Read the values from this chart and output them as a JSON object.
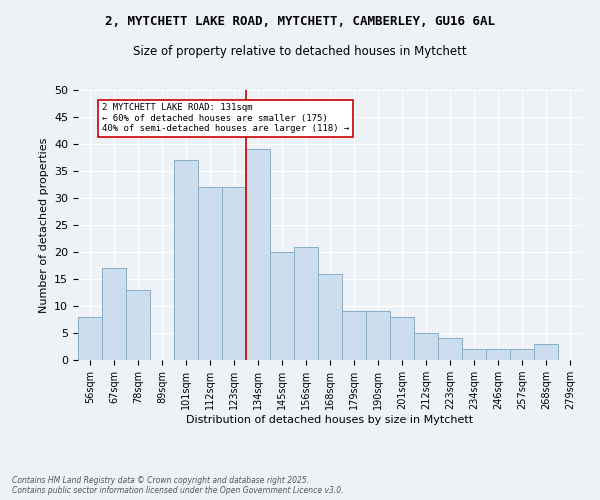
{
  "title_line1": "2, MYTCHETT LAKE ROAD, MYTCHETT, CAMBERLEY, GU16 6AL",
  "title_line2": "Size of property relative to detached houses in Mytchett",
  "xlabel": "Distribution of detached houses by size in Mytchett",
  "ylabel": "Number of detached properties",
  "categories": [
    "56sqm",
    "67sqm",
    "78sqm",
    "89sqm",
    "101sqm",
    "112sqm",
    "123sqm",
    "134sqm",
    "145sqm",
    "156sqm",
    "168sqm",
    "179sqm",
    "190sqm",
    "201sqm",
    "212sqm",
    "223sqm",
    "234sqm",
    "246sqm",
    "257sqm",
    "268sqm",
    "279sqm"
  ],
  "values": [
    8,
    17,
    13,
    0,
    37,
    32,
    32,
    39,
    20,
    21,
    16,
    9,
    9,
    8,
    5,
    4,
    2,
    2,
    2,
    3,
    0
  ],
  "bar_color": "#ccdded",
  "bar_edge_color": "#88aec8",
  "vline_x_index": 7,
  "annotation_label": "2 MYTCHETT LAKE ROAD: 131sqm\n← 60% of detached houses are smaller (175)\n40% of semi-detached houses are larger (118) →",
  "ylim": [
    0,
    50
  ],
  "yticks": [
    0,
    5,
    10,
    15,
    20,
    25,
    30,
    35,
    40,
    45,
    50
  ],
  "footer": "Contains HM Land Registry data © Crown copyright and database right 2025.\nContains public sector information licensed under the Open Government Licence v3.0.",
  "background_color": "#eef2f7",
  "plot_background": "#eef2f7",
  "grid_color": "#ffffff",
  "annotation_box_color": "#ffffff",
  "annotation_box_edge": "#cc0000",
  "vline_color": "#cc0000"
}
